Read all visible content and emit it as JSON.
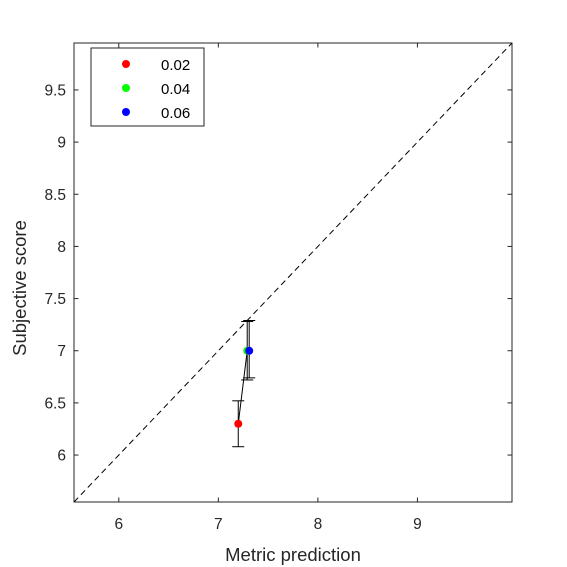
{
  "chart_data": {
    "type": "scatter",
    "xlabel": "Metric prediction",
    "ylabel": "Subjective score",
    "xlim": [
      5.55,
      9.95
    ],
    "ylim": [
      5.55,
      9.95
    ],
    "xticks": [
      6,
      7,
      8,
      9
    ],
    "xtick_labels": [
      "6",
      "7",
      "8",
      "9"
    ],
    "yticks": [
      6,
      6.5,
      7,
      7.5,
      8,
      8.5,
      9,
      9.5
    ],
    "ytick_labels": [
      "6",
      "6.5",
      "7",
      "7.5",
      "8",
      "8.5",
      "9",
      "9.5"
    ],
    "grid": false,
    "legend_position": "top-left",
    "reference_line": "y = x (dashed)",
    "series": [
      {
        "name": "0.02",
        "color": "#ff0000",
        "x": 7.2,
        "y": 6.3,
        "err_low": 6.08,
        "err_high": 6.52
      },
      {
        "name": "0.04",
        "color": "#00ff00",
        "x": 7.29,
        "y": 7.0,
        "err_low": 6.72,
        "err_high": 7.28
      },
      {
        "name": "0.06",
        "color": "#0000ff",
        "x": 7.31,
        "y": 7.0,
        "err_low": 6.74,
        "err_high": 7.29
      }
    ]
  }
}
